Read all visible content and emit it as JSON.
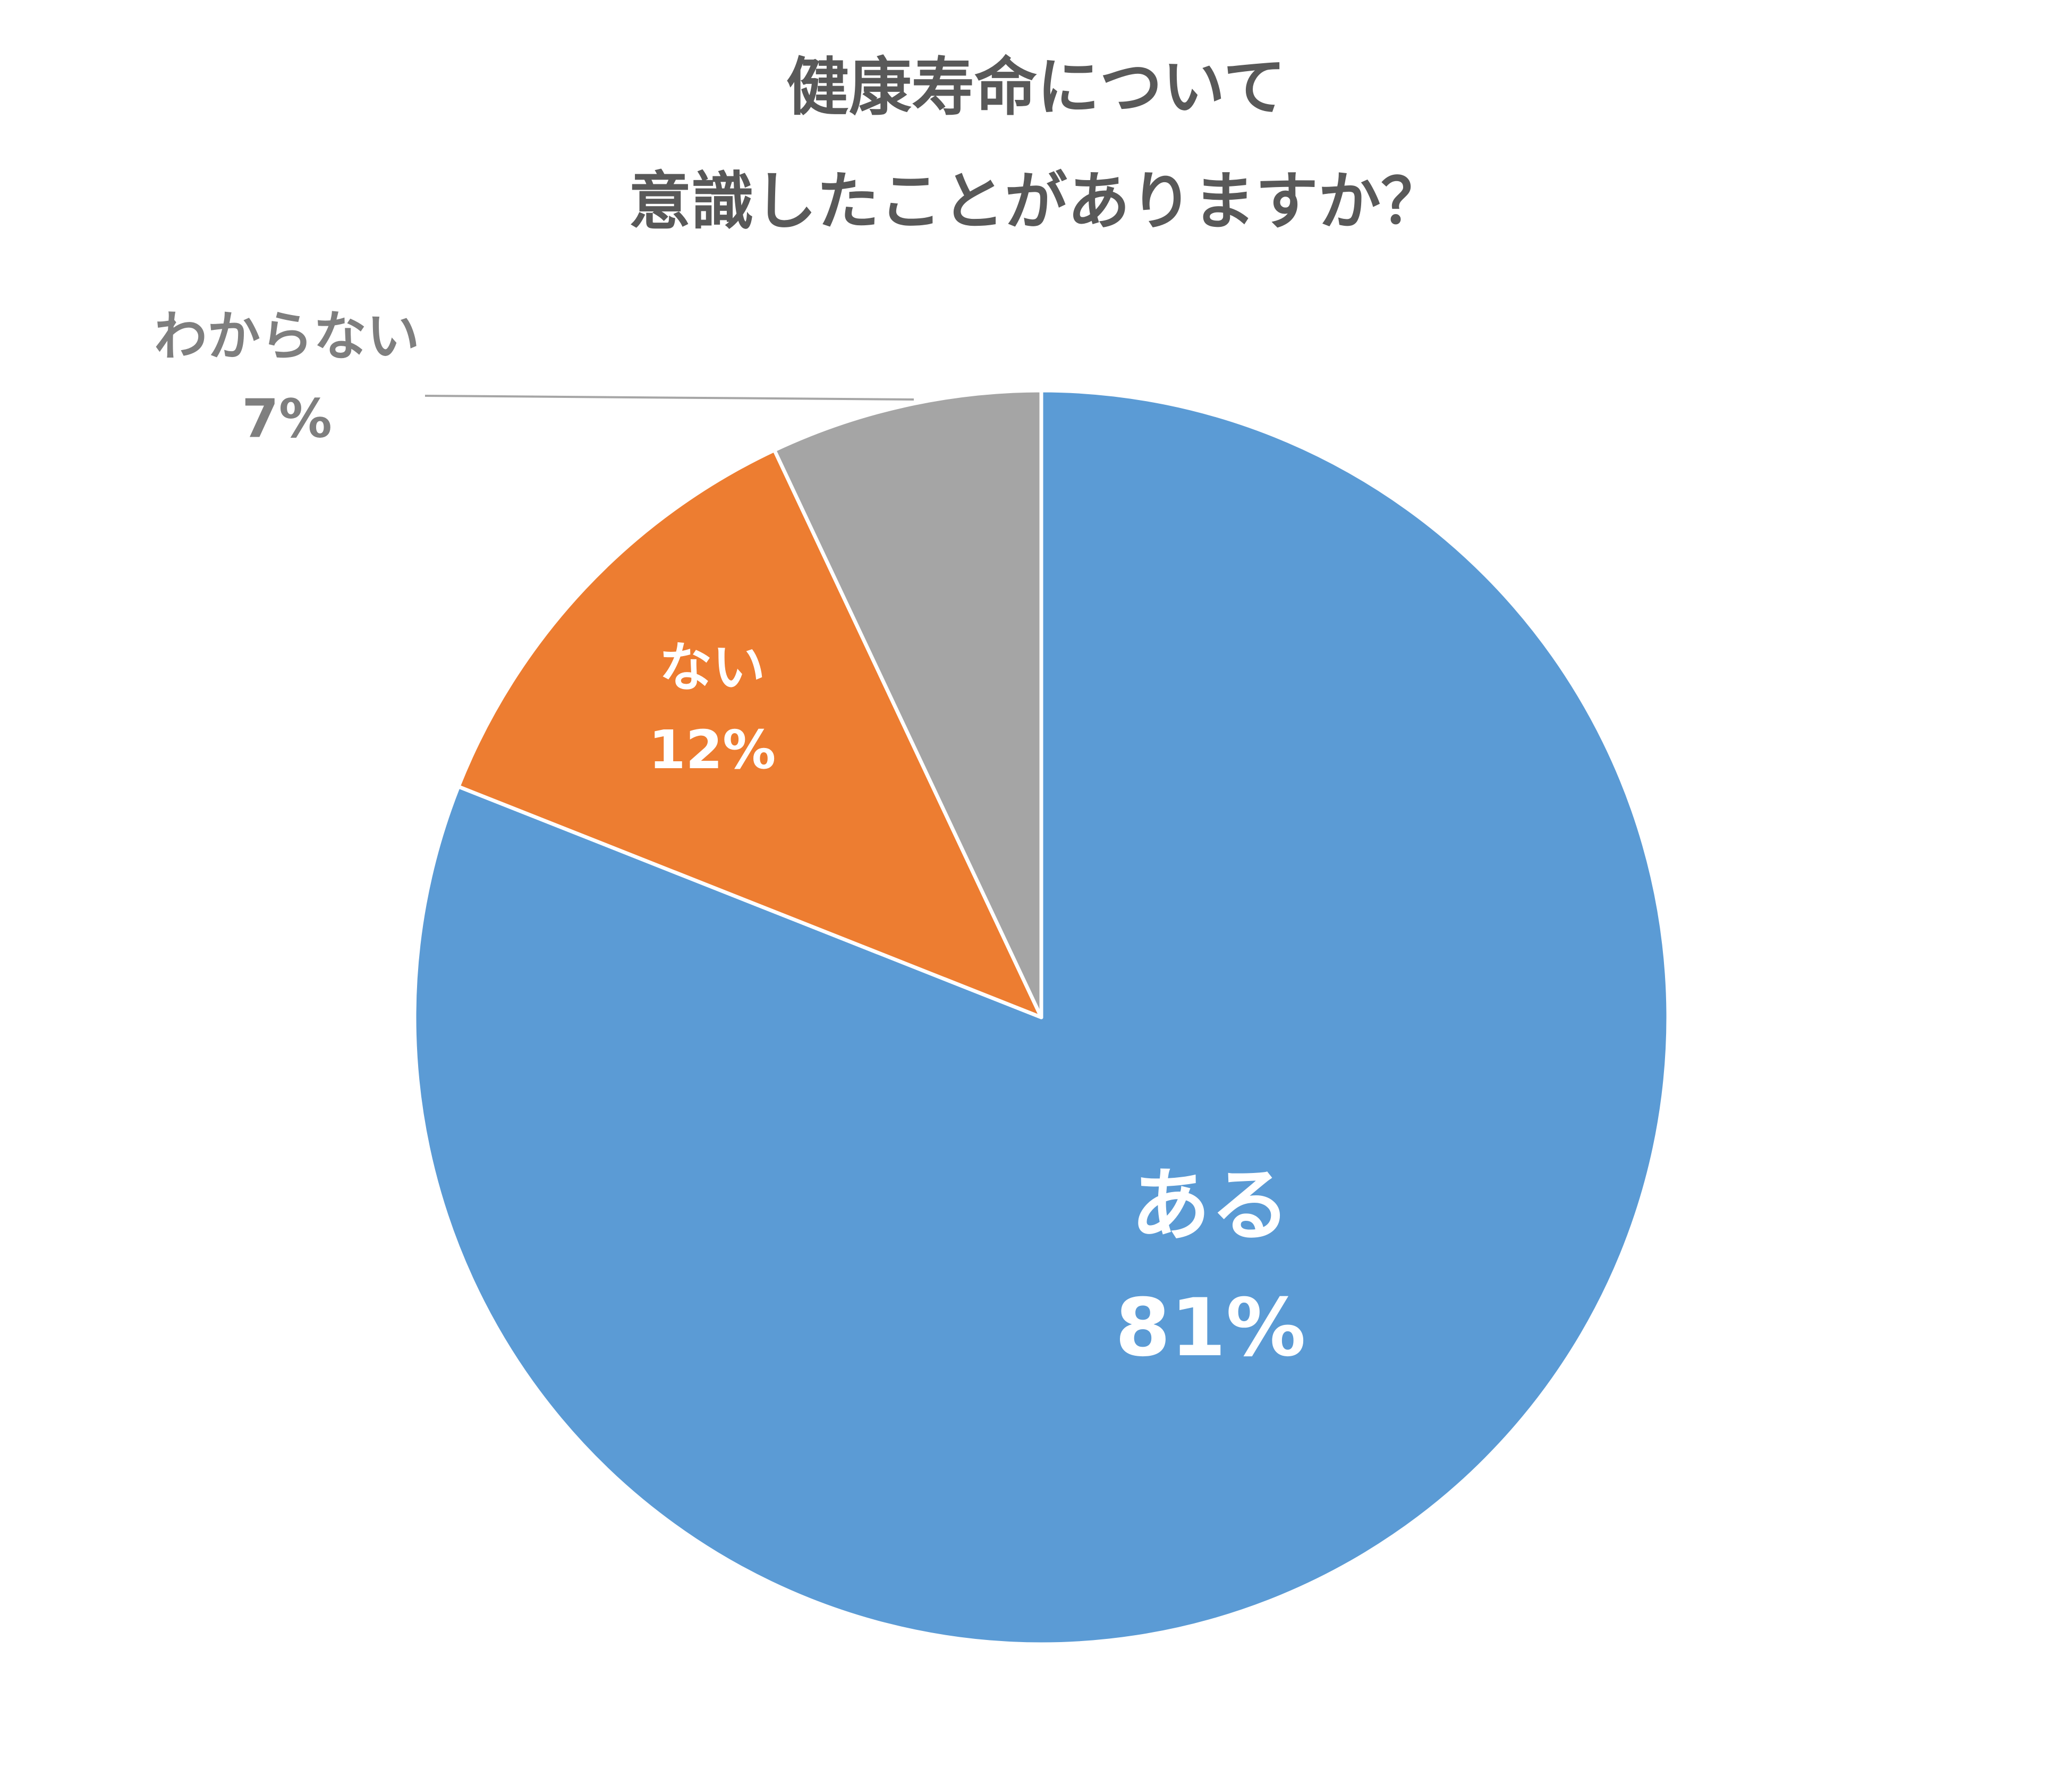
{
  "chart_data": {
    "type": "pie",
    "title_lines": [
      "健康寿命について",
      "意識したことがありますか？"
    ],
    "slices": [
      {
        "category": "ある",
        "percent_label": "81%",
        "value": 81,
        "color": "#5b9bd5"
      },
      {
        "category": "ない",
        "percent_label": "12%",
        "value": 12,
        "color": "#ed7d31"
      },
      {
        "category": "わからない",
        "percent_label": "7%",
        "value": 7,
        "color": "#a5a5a5"
      }
    ],
    "start_angle_deg": 0,
    "direction": "clockwise",
    "legend": "none"
  }
}
